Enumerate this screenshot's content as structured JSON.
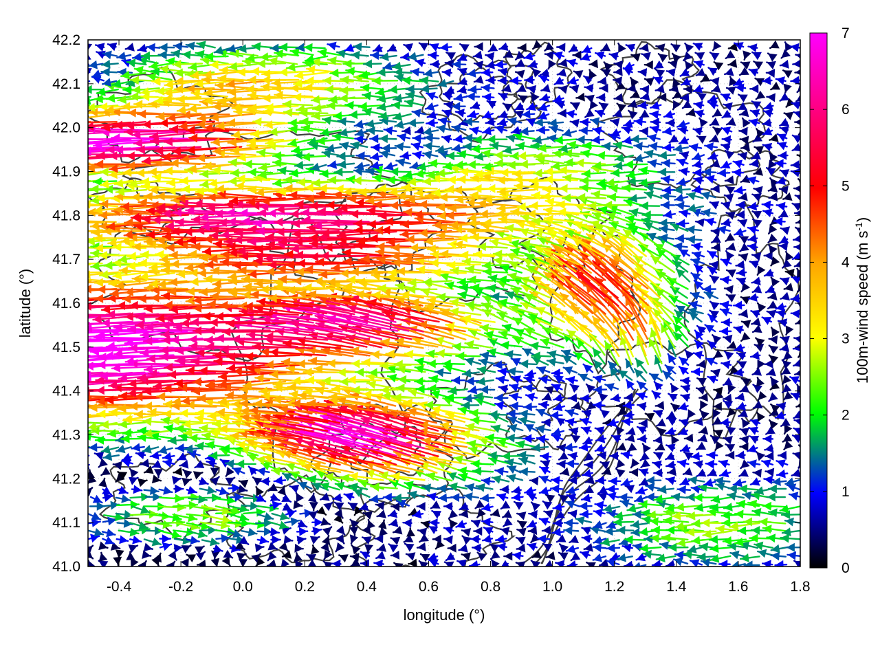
{
  "chart_data": {
    "type": "vector-field",
    "xlabel": "longitude (°)",
    "ylabel": "latitude (°)",
    "xlim": [
      -0.5,
      1.8
    ],
    "ylim": [
      41.0,
      42.2
    ],
    "xticks": [
      "-0.4",
      "-0.2",
      "0.0",
      "0.2",
      "0.4",
      "0.6",
      "0.8",
      "1.0",
      "1.2",
      "1.4",
      "1.6",
      "1.8"
    ],
    "xtick_values": [
      -0.4,
      -0.2,
      0.0,
      0.2,
      0.4,
      0.6,
      0.8,
      1.0,
      1.2,
      1.4,
      1.6,
      1.8
    ],
    "yticks": [
      "41.0",
      "41.1",
      "41.2",
      "41.3",
      "41.4",
      "41.5",
      "41.6",
      "41.7",
      "41.8",
      "41.9",
      "42.0",
      "42.1",
      "42.2"
    ],
    "ytick_values": [
      41.0,
      41.1,
      41.2,
      41.3,
      41.4,
      41.5,
      41.6,
      41.7,
      41.8,
      41.9,
      42.0,
      42.1,
      42.2
    ],
    "grid": "dotted",
    "colorbar": {
      "label_main": "100m-wind speed (m s",
      "label_sup": "-1",
      "label_end": ")",
      "ticks": [
        "0",
        "1",
        "2",
        "3",
        "4",
        "5",
        "6",
        "7"
      ],
      "tick_values": [
        0,
        1,
        2,
        3,
        4,
        5,
        6,
        7
      ],
      "range": [
        0,
        7
      ],
      "colors": [
        "#000000",
        "#0000ff",
        "#00ff00",
        "#ffff00",
        "#ffa500",
        "#ff0000",
        "#ff00ff"
      ]
    },
    "vector_regions": [
      {
        "lon_range": [
          -0.5,
          0.3
        ],
        "lat_range": [
          41.35,
          41.65
        ],
        "speed": 7.0,
        "direction": "westward"
      },
      {
        "lon_range": [
          -0.5,
          0.9
        ],
        "lat_range": [
          41.75,
          41.85
        ],
        "speed": 5.5,
        "direction": "westward"
      },
      {
        "lon_range": [
          0.2,
          0.8
        ],
        "lat_range": [
          41.15,
          41.35
        ],
        "speed": 6.5,
        "direction": "west-northwest"
      },
      {
        "lon_range": [
          0.9,
          1.4
        ],
        "lat_range": [
          41.45,
          41.75
        ],
        "speed": 4.5,
        "direction": "northwest"
      },
      {
        "lon_range": [
          1.2,
          1.8
        ],
        "lat_range": [
          41.0,
          41.2
        ],
        "speed": 1.8,
        "direction": "westward"
      },
      {
        "lon_range": [
          1.2,
          1.8
        ],
        "lat_range": [
          41.3,
          42.2
        ],
        "speed": 0.8,
        "direction": "variable"
      },
      {
        "lon_range": [
          0.5,
          1.1
        ],
        "lat_range": [
          41.9,
          42.2
        ],
        "speed": 1.2,
        "direction": "westward"
      },
      {
        "lon_range": [
          -0.5,
          0.3
        ],
        "lat_range": [
          41.0,
          41.25
        ],
        "speed": 3.0,
        "direction": "eastward"
      }
    ]
  }
}
